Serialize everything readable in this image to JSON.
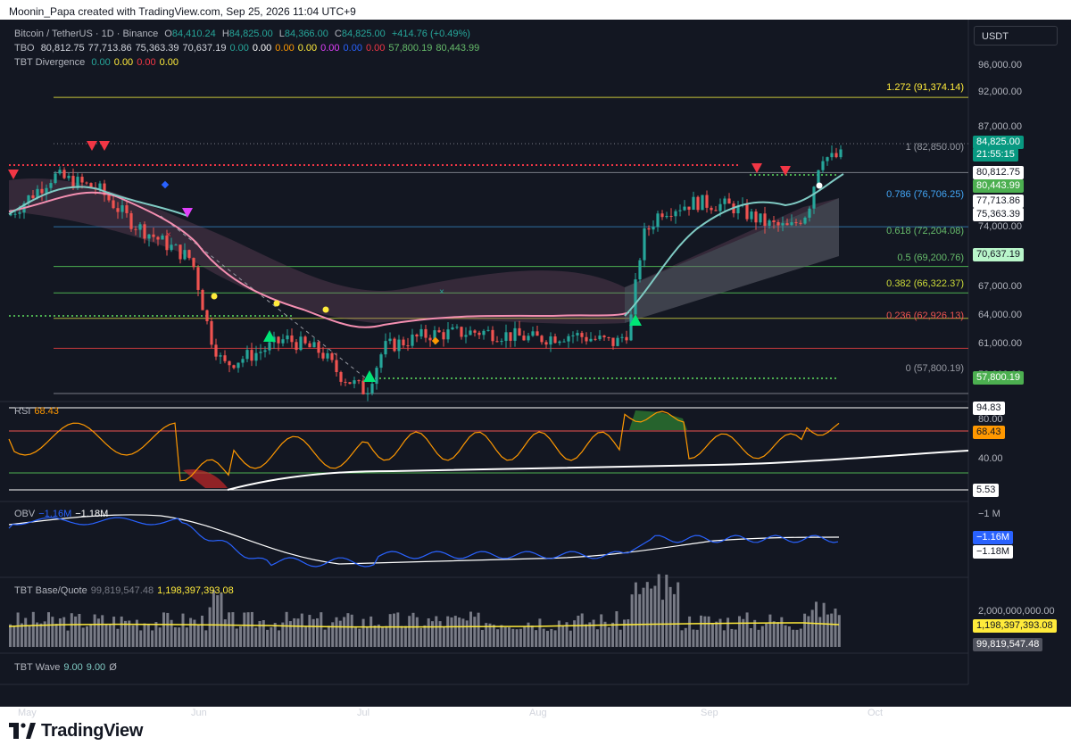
{
  "header": {
    "caption": "Moonin_Papa created with TradingView.com, Sep 25, 2026 11:04 UTC+9"
  },
  "symbol": {
    "name": "Bitcoin / TetherUS · 1D · Binance",
    "o_label": "O",
    "open": "84,410.24",
    "h_label": "H",
    "high": "84,825.00",
    "l_label": "L",
    "low": "84,366.00",
    "c_label": "C",
    "close": "84,825.00",
    "change": "+414.76 (+0.49%)"
  },
  "currency_button": "USDT",
  "tbo": {
    "label": "TBO",
    "values": [
      "80,812.75",
      "77,713.86",
      "75,363.39",
      "70,637.19",
      "0.00",
      "0.00",
      "0.00",
      "0.00",
      "0.00",
      "0.00",
      "0.00",
      "57,800.19",
      "80,443.99"
    ],
    "colors": [
      "#d1d4dc",
      "#d1d4dc",
      "#d1d4dc",
      "#d1d4dc",
      "#26a69a",
      "#ffffff",
      "#ff9800",
      "#ffeb3b",
      "#e040fb",
      "#2962ff",
      "#f23645",
      "#66bb6a",
      "#66bb6a"
    ]
  },
  "tbt_divergence": {
    "label": "TBT Divergence",
    "values": [
      "0.00",
      "0.00",
      "0.00",
      "0.00"
    ],
    "colors": [
      "#26a69a",
      "#ffeb3b",
      "#f23645",
      "#ffeb3b"
    ]
  },
  "price_axis": {
    "ticks": [
      "96,000.00",
      "92,000.00",
      "87,000.00",
      "74,000.00",
      "67,000.00",
      "64,000.00",
      "61,000.00",
      "58,000.00"
    ]
  },
  "price_badges": [
    {
      "text": "84,825.00",
      "bg": "#089981",
      "fg": "#ffffff"
    },
    {
      "text": "21:55:15",
      "bg": "#089981",
      "fg": "#ffffff"
    },
    {
      "text": "80,812.75",
      "bg": "#ffffff",
      "fg": "#131722"
    },
    {
      "text": "80,443.99",
      "bg": "#4caf50",
      "fg": "#ffffff"
    },
    {
      "text": "77,713.86",
      "bg": "#ffffff",
      "fg": "#131722"
    },
    {
      "text": "75,363.39",
      "bg": "#ffffff",
      "fg": "#131722"
    },
    {
      "text": "70,637.19",
      "bg": "#b9f6ca",
      "fg": "#131722"
    },
    {
      "text": "57,800.19",
      "bg": "#4caf50",
      "fg": "#ffffff"
    }
  ],
  "fib_levels": [
    {
      "label": "1.272 (91,374.14)",
      "color": "#ffeb3b",
      "line": "#c7c43a"
    },
    {
      "label": "1 (82,850.00)",
      "color": "#9598a1",
      "line": "#787b86"
    },
    {
      "label": "0.786 (76,706.25)",
      "color": "#42a5f5",
      "line": "#2f6fa3"
    },
    {
      "label": "0.618 (72,204.08)",
      "color": "#66bb6a",
      "line": "#4caf50"
    },
    {
      "label": "0.5 (69,200.76)",
      "color": "#66bb6a",
      "line": "#4caf50"
    },
    {
      "label": "0.382 (66,322.37)",
      "color": "#cddc39",
      "line": "#b0b33a"
    },
    {
      "label": "0.236 (62,926.13)",
      "color": "#ef5350",
      "line": "#c0393b"
    },
    {
      "label": "0 (57,800.19)",
      "color": "#9598a1",
      "line": "#787b86"
    }
  ],
  "rsi": {
    "label": "RSI",
    "value": "68.43",
    "ticks": [
      "80.00",
      "40.00"
    ],
    "badges": [
      {
        "text": "94.83",
        "bg": "#ffffff",
        "fg": "#131722"
      },
      {
        "text": "68.43",
        "bg": "#ff9800",
        "fg": "#131722"
      },
      {
        "text": "5.53",
        "bg": "#ffffff",
        "fg": "#131722"
      }
    ]
  },
  "obv": {
    "label": "OBV",
    "value1": "−1.16M",
    "value2": "−1.18M",
    "tick": "−1 M",
    "badges": [
      {
        "text": "−1.16M",
        "bg": "#2962ff",
        "fg": "#ffffff"
      },
      {
        "text": "−1.18M",
        "bg": "#ffffff",
        "fg": "#131722"
      }
    ]
  },
  "base_quote": {
    "label": "TBT Base/Quote",
    "value1": "99,819,547.48",
    "value2": "1,198,397,393.08",
    "tick": "2,000,000,000.00",
    "badges": [
      {
        "text": "1,198,397,393.08",
        "bg": "#ffeb3b",
        "fg": "#131722"
      },
      {
        "text": "99,819,547.48",
        "bg": "#50535e",
        "fg": "#ffffff"
      }
    ]
  },
  "tbt_wave": {
    "label": "TBT Wave",
    "values": [
      "9.00",
      "9.00",
      "Ø"
    ]
  },
  "time_axis": [
    "May",
    "Jun",
    "Jul",
    "Aug",
    "Sep",
    "Oct"
  ],
  "logo": {
    "text": "TradingView"
  },
  "colors": {
    "bg": "#131722",
    "up": "#26a69a",
    "down": "#ef5350",
    "rsi": "#ff9800",
    "obv": "#2962ff",
    "ma_teal": "#80cbc4",
    "ma_pink": "#f48fb1"
  }
}
